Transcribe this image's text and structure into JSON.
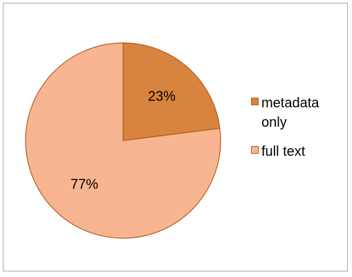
{
  "chart_data": {
    "type": "pie",
    "title": "",
    "start_angle_deg": 0,
    "slices": [
      {
        "label": "metadata only",
        "value": 23,
        "display": "23%",
        "color": "#D9843E"
      },
      {
        "label": "full text",
        "value": 77,
        "display": "77%",
        "color": "#F8B592"
      }
    ],
    "slice_border_color": "#B05A1E",
    "legend_position": "right"
  }
}
